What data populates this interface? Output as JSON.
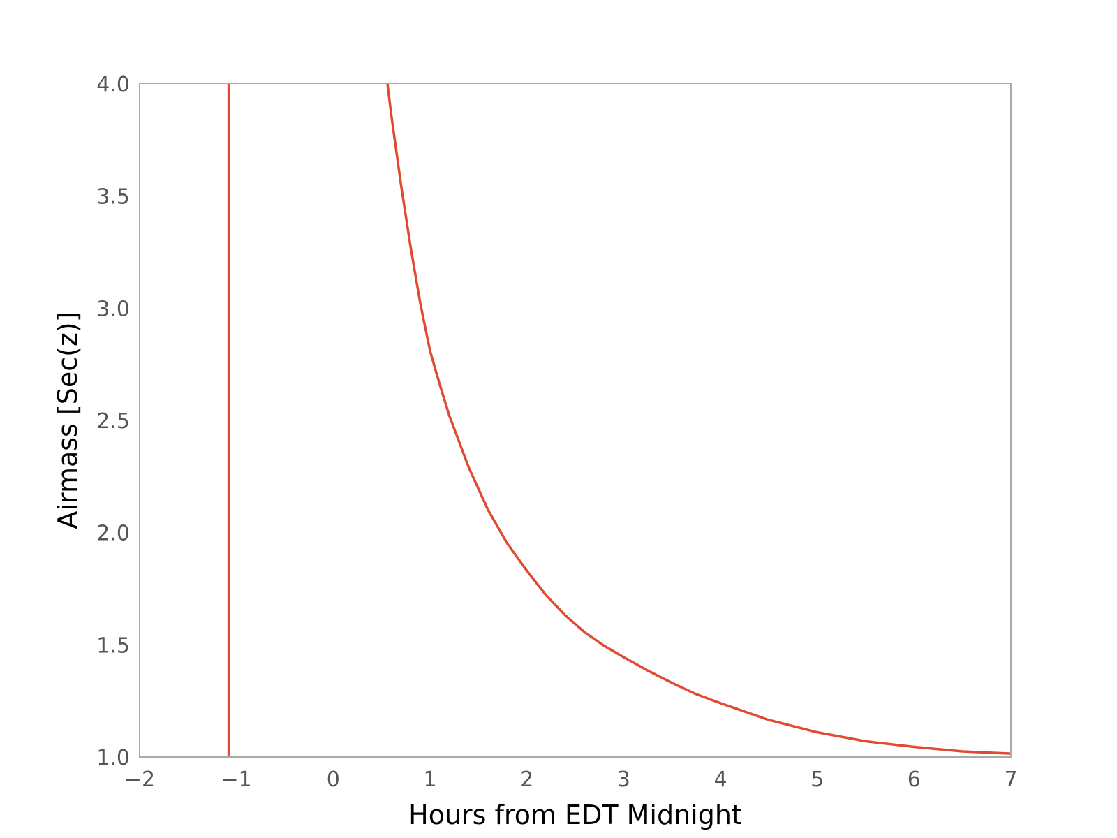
{
  "chart_data": {
    "type": "line",
    "title": "",
    "xlabel": "Hours from EDT Midnight",
    "ylabel": "Airmass [Sec(z)]",
    "xlim": [
      -2,
      7
    ],
    "ylim": [
      1.0,
      4.0
    ],
    "grid": false,
    "xticks": [
      -2,
      -1,
      0,
      1,
      2,
      3,
      4,
      5,
      6,
      7
    ],
    "xtick_labels": [
      "−2",
      "−1",
      "0",
      "1",
      "2",
      "3",
      "4",
      "5",
      "6",
      "7"
    ],
    "yticks": [
      1.0,
      1.5,
      2.0,
      2.5,
      3.0,
      3.5,
      4.0
    ],
    "ytick_labels": [
      "1.0",
      "1.5",
      "2.0",
      "2.5",
      "3.0",
      "3.5",
      "4.0"
    ],
    "colors": {
      "line": "#e04a30",
      "frame": "#aaaaaa",
      "tick_text": "#555555",
      "label_text": "#000000"
    },
    "series": [
      {
        "x": [
          -1.08,
          -1.08
        ],
        "y": [
          1.0,
          4.0
        ]
      },
      {
        "x": [
          0.56,
          0.6,
          0.7,
          0.8,
          0.9,
          1.0,
          1.1,
          1.2,
          1.4,
          1.6,
          1.8,
          2.0,
          2.2,
          2.4,
          2.6,
          2.8,
          3.0,
          3.25,
          3.5,
          3.75,
          4.0,
          4.5,
          5.0,
          5.5,
          6.0,
          6.5,
          7.0
        ],
        "y": [
          4.0,
          3.86,
          3.55,
          3.27,
          3.02,
          2.81,
          2.66,
          2.52,
          2.29,
          2.1,
          1.95,
          1.83,
          1.72,
          1.63,
          1.555,
          1.495,
          1.445,
          1.385,
          1.33,
          1.28,
          1.24,
          1.165,
          1.11,
          1.07,
          1.045,
          1.025,
          1.015
        ]
      }
    ]
  }
}
